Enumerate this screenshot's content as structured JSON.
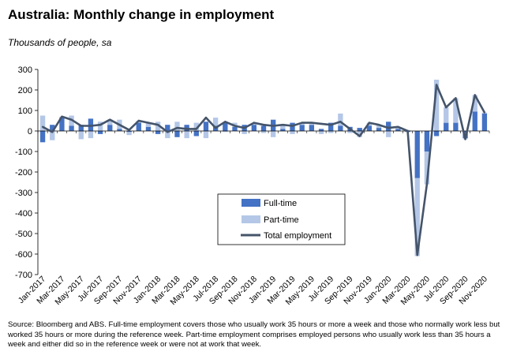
{
  "title": "Australia: Monthly change in employment",
  "subtitle": "Thousands of people, sa",
  "source": "Source: Bloomberg and ABS.  Full-time employment covers those who usually work 35 hours or more a week and those who normally work less but worked 35 hours or  more during the reference week.  Part-time employment comprises employed persons who usually work less than 35 hours a week and either did so in the reference week or were not at work that week.",
  "chart_data": {
    "type": "bar",
    "title": "Australia: Monthly change in employment",
    "ylabel": "Thousands of people, sa",
    "ylim": [
      -700,
      300
    ],
    "yticks": [
      300,
      200,
      100,
      0,
      -100,
      -200,
      -300,
      -400,
      -500,
      -600,
      -700
    ],
    "grid": false,
    "legend_position": "inside-center",
    "colors": {
      "full_time": "#4472c4",
      "part_time": "#b4c7e7",
      "total": "#44546a"
    },
    "categories": [
      "Jan-2017",
      "Feb-2017",
      "Mar-2017",
      "Apr-2017",
      "May-2017",
      "Jun-2017",
      "Jul-2017",
      "Aug-2017",
      "Sep-2017",
      "Oct-2017",
      "Nov-2017",
      "Dec-2017",
      "Jan-2018",
      "Feb-2018",
      "Mar-2018",
      "Apr-2018",
      "May-2018",
      "Jun-2018",
      "Jul-2018",
      "Aug-2018",
      "Sep-2018",
      "Oct-2018",
      "Nov-2018",
      "Dec-2018",
      "Jan-2019",
      "Feb-2019",
      "Mar-2019",
      "Apr-2019",
      "May-2019",
      "Jun-2019",
      "Jul-2019",
      "Aug-2019",
      "Sep-2019",
      "Oct-2019",
      "Nov-2019",
      "Dec-2019",
      "Jan-2020",
      "Feb-2020",
      "Mar-2020",
      "Apr-2020",
      "May-2020",
      "Jun-2020",
      "Jul-2020",
      "Aug-2020",
      "Sep-2020",
      "Oct-2020",
      "Nov-2020"
    ],
    "tick_labels": [
      "Jan-2017",
      "Mar-2017",
      "May-2017",
      "Jul-2017",
      "Sep-2017",
      "Nov-2017",
      "Jan-2018",
      "Mar-2018",
      "May-2018",
      "Jul-2018",
      "Sep-2018",
      "Nov-2018",
      "Jan-2019",
      "Mar-2019",
      "May-2019",
      "Jul-2019",
      "Sep-2019",
      "Nov-2019",
      "Jan-2020",
      "Mar-2020",
      "May-2020",
      "Jul-2020",
      "Sep-2020",
      "Nov-2020"
    ],
    "series": [
      {
        "name": "Full-time",
        "kind": "bar",
        "values": [
          -55,
          30,
          65,
          25,
          30,
          60,
          -15,
          30,
          10,
          -5,
          40,
          20,
          -15,
          30,
          -30,
          30,
          -25,
          45,
          25,
          40,
          20,
          30,
          30,
          25,
          55,
          10,
          40,
          30,
          30,
          10,
          40,
          25,
          20,
          15,
          25,
          15,
          45,
          10,
          -5,
          -230,
          -100,
          -25,
          40,
          40,
          -35,
          95,
          85
        ]
      },
      {
        "name": "Part-time",
        "kind": "bar",
        "values": [
          75,
          -45,
          5,
          50,
          -40,
          -35,
          45,
          25,
          45,
          -15,
          10,
          20,
          45,
          -35,
          45,
          -35,
          40,
          -35,
          40,
          -5,
          20,
          -15,
          10,
          -10,
          -30,
          20,
          -15,
          10,
          10,
          -15,
          -10,
          60,
          -10,
          -30,
          15,
          15,
          -30,
          10,
          5,
          -380,
          -160,
          250,
          75,
          120,
          -5,
          80,
          5
        ]
      },
      {
        "name": "Total employment",
        "kind": "line",
        "values": [
          20,
          -5,
          70,
          55,
          25,
          25,
          30,
          55,
          30,
          5,
          50,
          40,
          30,
          -5,
          15,
          10,
          10,
          65,
          15,
          45,
          25,
          15,
          40,
          30,
          25,
          30,
          25,
          40,
          40,
          35,
          30,
          45,
          10,
          -25,
          40,
          30,
          15,
          20,
          0,
          -605,
          -260,
          225,
          115,
          160,
          -40,
          175,
          90
        ]
      }
    ]
  }
}
